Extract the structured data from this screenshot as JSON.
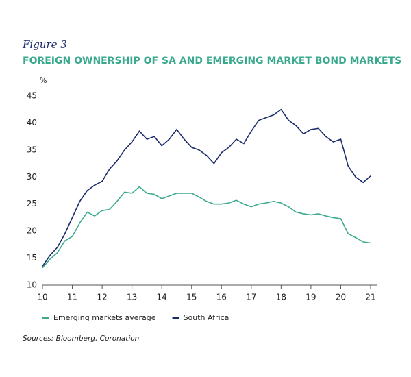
{
  "chart_data": {
    "type": "line",
    "figure_label": "Figure 3",
    "title": "FOREIGN OWNERSHIP OF SA AND EMERGING MARKET BOND MARKETS",
    "y_label": "%",
    "source": "Sources: Bloomberg, Coronation",
    "x": [
      10,
      10.25,
      10.5,
      10.75,
      11,
      11.25,
      11.5,
      11.75,
      12,
      12.25,
      12.5,
      12.75,
      13,
      13.25,
      13.5,
      13.75,
      14,
      14.25,
      14.5,
      14.75,
      15,
      15.25,
      15.5,
      15.75,
      16,
      16.25,
      16.5,
      16.75,
      17,
      17.25,
      17.5,
      17.75,
      18,
      18.25,
      18.5,
      18.75,
      19,
      19.25,
      19.5,
      19.75,
      20,
      20.25,
      20.5,
      20.75,
      21
    ],
    "series": [
      {
        "name": "Emerging markets average",
        "color": "#3aaa8f",
        "values": [
          13.2,
          14.8,
          16,
          18.2,
          19,
          21.5,
          23.5,
          22.8,
          23.8,
          24,
          25.5,
          27.2,
          27,
          28.2,
          27,
          26.8,
          26,
          26.5,
          27,
          27,
          27,
          26.3,
          25.5,
          25,
          25,
          25.2,
          25.7,
          25,
          24.5,
          25,
          25.2,
          25.5,
          25.2,
          24.5,
          23.5,
          23.2,
          23,
          23.2,
          22.8,
          22.5,
          22.3,
          19.5,
          18.8,
          18,
          17.8
        ]
      },
      {
        "name": "South Africa",
        "color": "#1b2a6b",
        "values": [
          13.5,
          15.5,
          17,
          19.5,
          22.5,
          25.5,
          27.5,
          28.5,
          29.2,
          31.5,
          33,
          35,
          36.5,
          38.5,
          37,
          37.5,
          35.8,
          37,
          38.8,
          37,
          35.5,
          35,
          34,
          32.5,
          34.5,
          35.5,
          37,
          36.2,
          38.5,
          40.5,
          41,
          41.5,
          42.5,
          40.5,
          39.5,
          38,
          38.8,
          39,
          37.5,
          36.5,
          37,
          32,
          30,
          29,
          30.2
        ]
      }
    ],
    "xlim": [
      10,
      21
    ],
    "xticks": [
      10,
      11,
      12,
      13,
      14,
      15,
      16,
      17,
      18,
      19,
      20,
      21
    ],
    "ylim": [
      10,
      45
    ],
    "yticks": [
      10,
      15,
      20,
      25,
      30,
      35,
      40,
      45
    ],
    "grid": false,
    "legend": "bottom-left"
  }
}
